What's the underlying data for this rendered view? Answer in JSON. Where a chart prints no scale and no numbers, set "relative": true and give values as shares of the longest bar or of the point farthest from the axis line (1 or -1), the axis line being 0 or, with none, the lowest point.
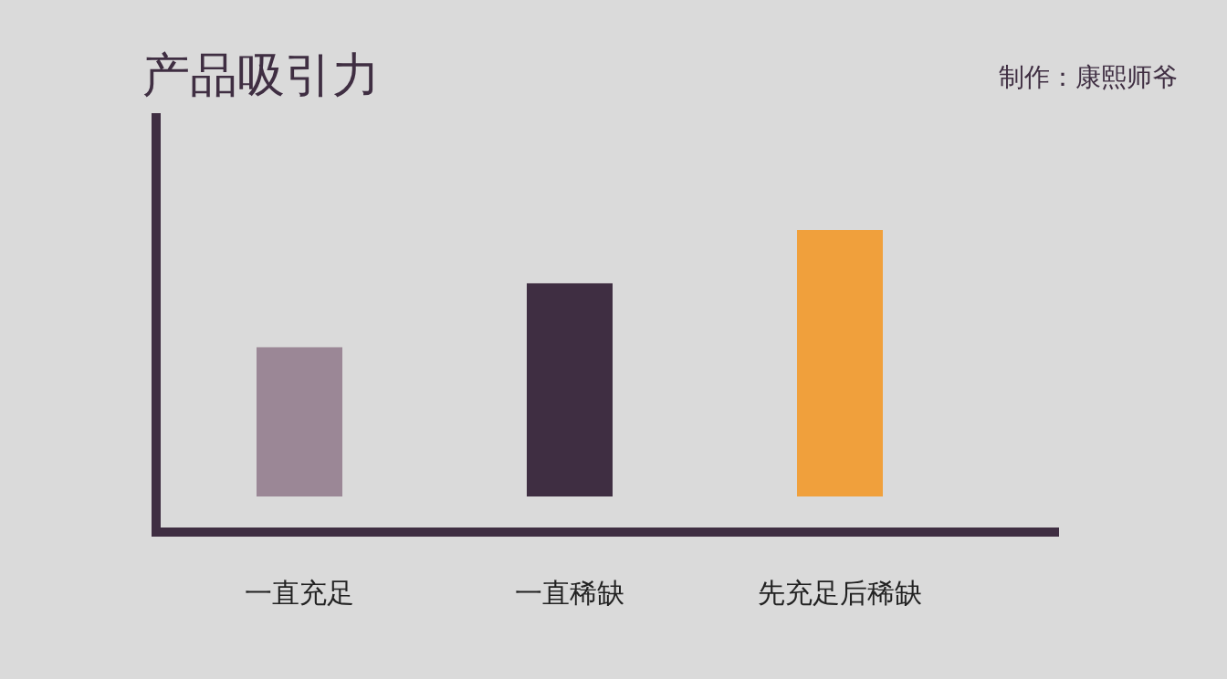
{
  "chart_data": {
    "type": "bar",
    "title": "产品吸引力",
    "relative": true,
    "categories": [
      "一直充足",
      "一直稀缺",
      "先充足后稀缺"
    ],
    "values": [
      0.56,
      0.8,
      1
    ],
    "colors": [
      "#9b8796",
      "#3f2e42",
      "#f0a03c"
    ],
    "annotations": [
      "制作：康熙师爷"
    ]
  }
}
